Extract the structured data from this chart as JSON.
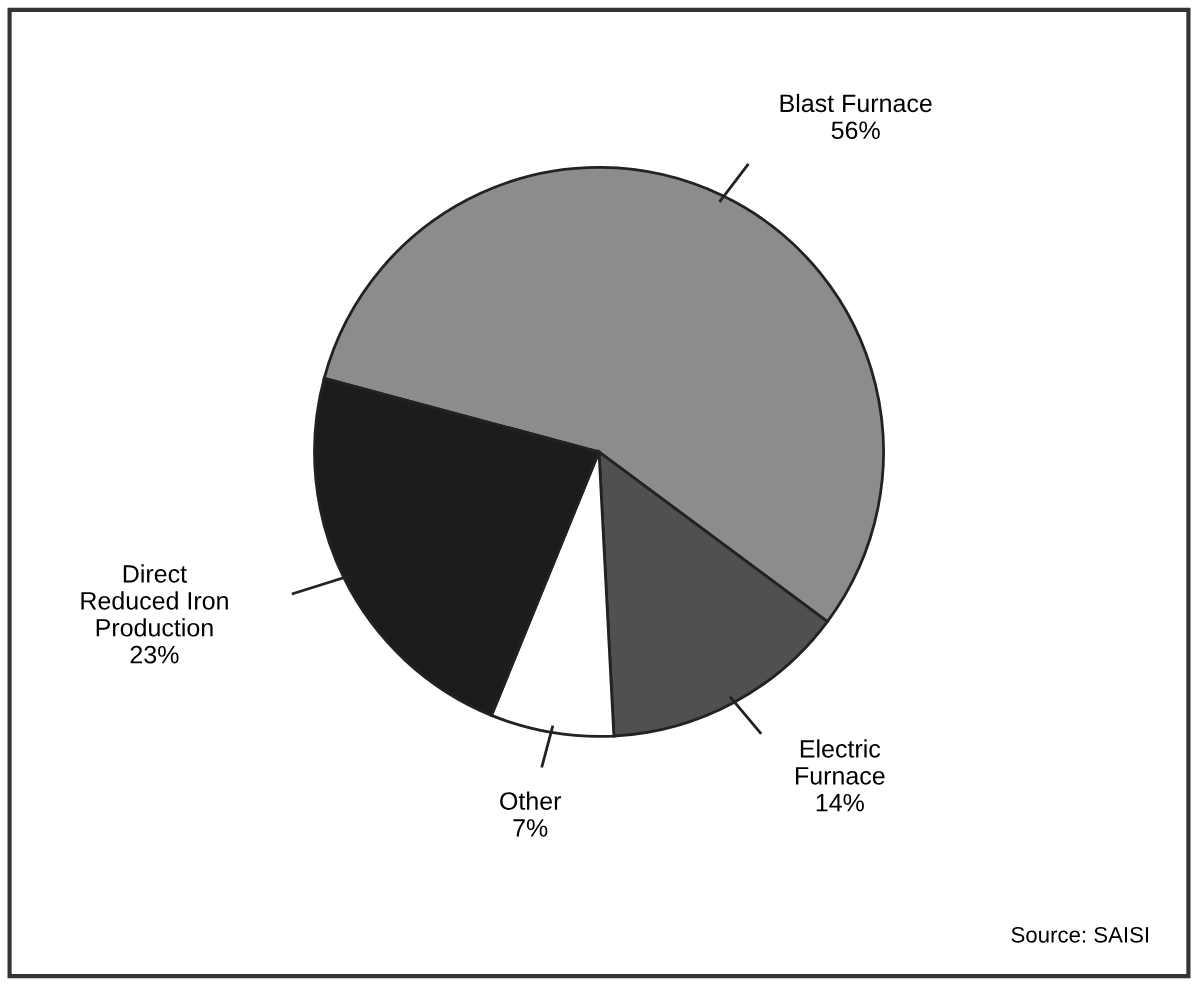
{
  "chart_data": {
    "type": "pie",
    "categories": [
      "Blast Furnace",
      "Electric Furnace",
      "Other",
      "Direct Reduced Iron Production"
    ],
    "values": [
      56,
      14,
      7,
      23
    ],
    "colors": [
      "#8c8c8c",
      "#505050",
      "#ffffff",
      "#1c1c1c"
    ],
    "value_labels": [
      "56%",
      "14%",
      "7%",
      "23%"
    ],
    "annotations": [
      "Source: SAISI"
    ]
  }
}
